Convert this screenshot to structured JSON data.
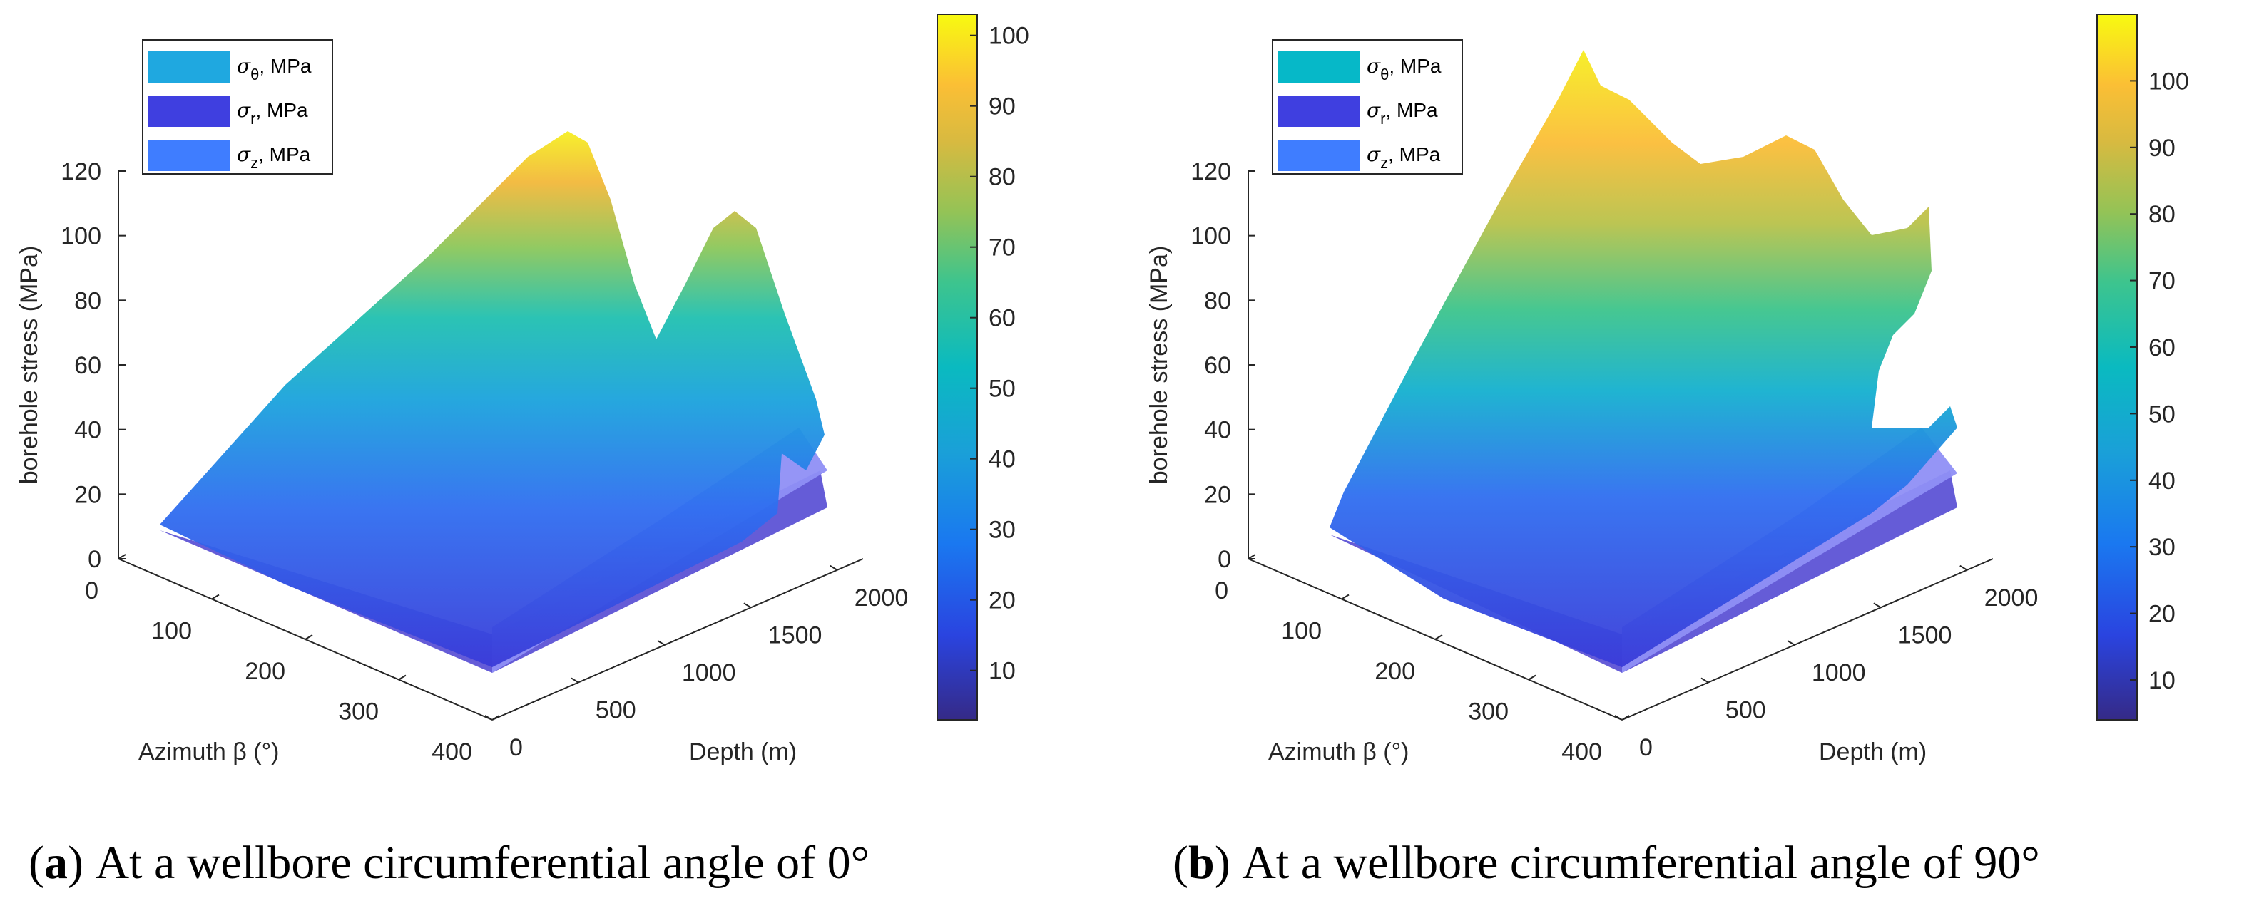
{
  "chart_data": [
    {
      "type": "surface",
      "panel_label": "a",
      "caption": "At a wellbore circumferential angle of 0°",
      "xlabel": "Azimuth β (°)",
      "ylabel": "Depth (m)",
      "zlabel": "borehole stress (MPa)",
      "x_ticks": [
        0,
        100,
        200,
        300,
        400
      ],
      "y_ticks": [
        0,
        500,
        1000,
        1500,
        2000
      ],
      "z_ticks": [
        0,
        20,
        40,
        60,
        80,
        100,
        120
      ],
      "xlim": [
        0,
        400
      ],
      "ylim": [
        0,
        2150
      ],
      "zlim": [
        0,
        120
      ],
      "legend": [
        {
          "sym": "σ",
          "sub": "θ",
          "unit": ", MPa",
          "color": "#1fa8e0"
        },
        {
          "sym": "σ",
          "sub": "r",
          "unit": ", MPa",
          "color": "#3f3fe0"
        },
        {
          "sym": "σ",
          "sub": "z",
          "unit": ", MPa",
          "color": "#3f7dff"
        }
      ],
      "legend_placement": "top-left",
      "colorbar": {
        "ticks": [
          10,
          20,
          30,
          40,
          50,
          60,
          70,
          80,
          90,
          100
        ],
        "range": [
          3,
          103
        ]
      },
      "surface_peak_MPa": 102
    },
    {
      "type": "surface",
      "panel_label": "b",
      "caption": "At a wellbore circumferential angle of 90°",
      "xlabel": "Azimuth β (°)",
      "ylabel": "Depth (m)",
      "zlabel": "borehole stress (MPa)",
      "x_ticks": [
        0,
        100,
        200,
        300,
        400
      ],
      "y_ticks": [
        0,
        500,
        1000,
        1500,
        2000
      ],
      "z_ticks": [
        0,
        20,
        40,
        60,
        80,
        100,
        120
      ],
      "xlim": [
        0,
        400
      ],
      "ylim": [
        0,
        2150
      ],
      "zlim": [
        0,
        120
      ],
      "legend": [
        {
          "sym": "σ",
          "sub": "θ",
          "unit": ", MPa",
          "color": "#06b8c8"
        },
        {
          "sym": "σ",
          "sub": "r",
          "unit": ", MPa",
          "color": "#3f3fe0"
        },
        {
          "sym": "σ",
          "sub": "z",
          "unit": ", MPa",
          "color": "#3f7dff"
        }
      ],
      "legend_placement": "top-left",
      "colorbar": {
        "ticks": [
          10,
          20,
          30,
          40,
          50,
          60,
          70,
          80,
          90,
          100
        ],
        "range": [
          4,
          110
        ]
      },
      "surface_peak_MPa": 110
    }
  ]
}
